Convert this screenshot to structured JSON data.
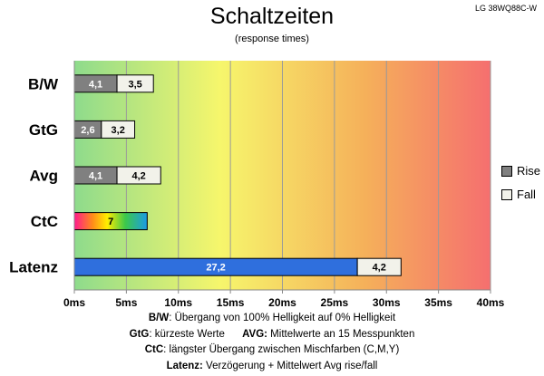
{
  "chart_data": {
    "type": "bar",
    "orientation": "horizontal",
    "stacked": true,
    "title": "Schaltzeiten",
    "subtitle": "(response times)",
    "model": "LG 38WQ88C-W",
    "categories": [
      "B/W",
      "GtG",
      "Avg",
      "CtC",
      "Latenz"
    ],
    "series": [
      {
        "name": "Rise",
        "values": [
          4.1,
          2.6,
          4.1,
          7,
          27.2
        ]
      },
      {
        "name": "Fall",
        "values": [
          3.5,
          3.2,
          4.2,
          null,
          4.2
        ]
      }
    ],
    "xlim": [
      0,
      40
    ],
    "x_ticks": [
      "0ms",
      "5ms",
      "10ms",
      "15ms",
      "20ms",
      "25ms",
      "30ms",
      "35ms",
      "40ms"
    ],
    "x_tick_values": [
      0,
      5,
      10,
      15,
      20,
      25,
      30,
      35,
      40
    ],
    "data_labels": {
      "B/W": [
        "4,1",
        "3,5"
      ],
      "GtG": [
        "2,6",
        "3,2"
      ],
      "Avg": [
        "4,1",
        "4,2"
      ],
      "CtC": [
        "7",
        ""
      ],
      "Latenz": [
        "27,2",
        "4,2"
      ]
    },
    "legend": {
      "position": "right",
      "entries": [
        "Rise",
        "Fall"
      ]
    },
    "grid": true,
    "colors": {
      "rise": "#808080",
      "fall": "#f2f2ea",
      "latenz_rise": "#2f6fdd",
      "background_gradient": [
        "#8fdc8f",
        "#f5f56a",
        "#f4a55a",
        "#f47070"
      ]
    }
  },
  "notes": {
    "line1_key": "B/W",
    "line1_text": ":  Übergang von 100% Helligkeit auf 0% Helligkeit",
    "line2_key_a": "GtG",
    "line2_text_a": ": kürzeste  Werte",
    "line2_key_b": "AVG:",
    "line2_text_b": " Mittelwerte  an 15 Messpunkten",
    "line3_key": "CtC",
    "line3_text": ": längster Übergang  zwischen Mischfarben  (C,M,Y)",
    "line4_key": "Latenz:",
    "line4_text": " Verzögerung  + Mittelwert Avg rise/fall"
  }
}
